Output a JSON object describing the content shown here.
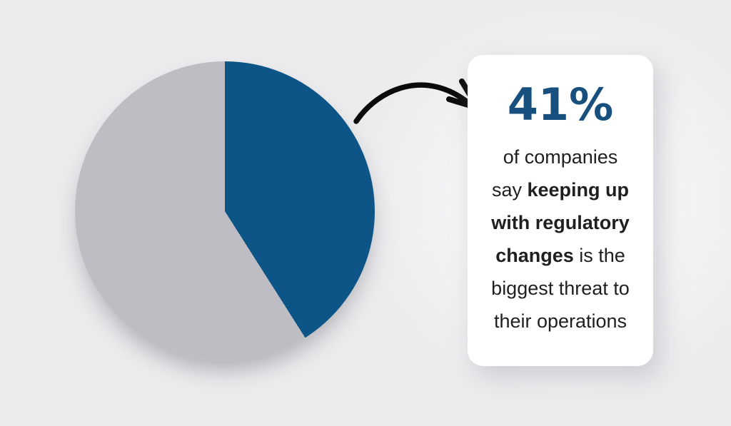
{
  "background_color": "#ececee",
  "chart_data": {
    "type": "pie",
    "title": "",
    "slices": [
      {
        "label": "highlighted-41-percent",
        "value": 41,
        "color": "#0d5586"
      },
      {
        "label": "remainder",
        "value": 59,
        "color": "#bdbdc3"
      }
    ],
    "start_angle_deg": 0,
    "direction": "clockwise",
    "legend_position": "none",
    "data_labels_shown": false
  },
  "stat_card": {
    "headline": "41%",
    "headline_color": "#17507e",
    "description_lines": [
      [
        {
          "t": "of companies",
          "b": false
        }
      ],
      [
        {
          "t": "say ",
          "b": false
        },
        {
          "t": "keeping up",
          "b": true
        }
      ],
      [
        {
          "t": "with regulatory",
          "b": true
        }
      ],
      [
        {
          "t": "changes",
          "b": true
        },
        {
          "t": " is the",
          "b": false
        }
      ],
      [
        {
          "t": "biggest threat to",
          "b": false
        }
      ],
      [
        {
          "t": "their operations",
          "b": false
        }
      ]
    ]
  },
  "arrow": {
    "color": "#0b0b0b"
  }
}
